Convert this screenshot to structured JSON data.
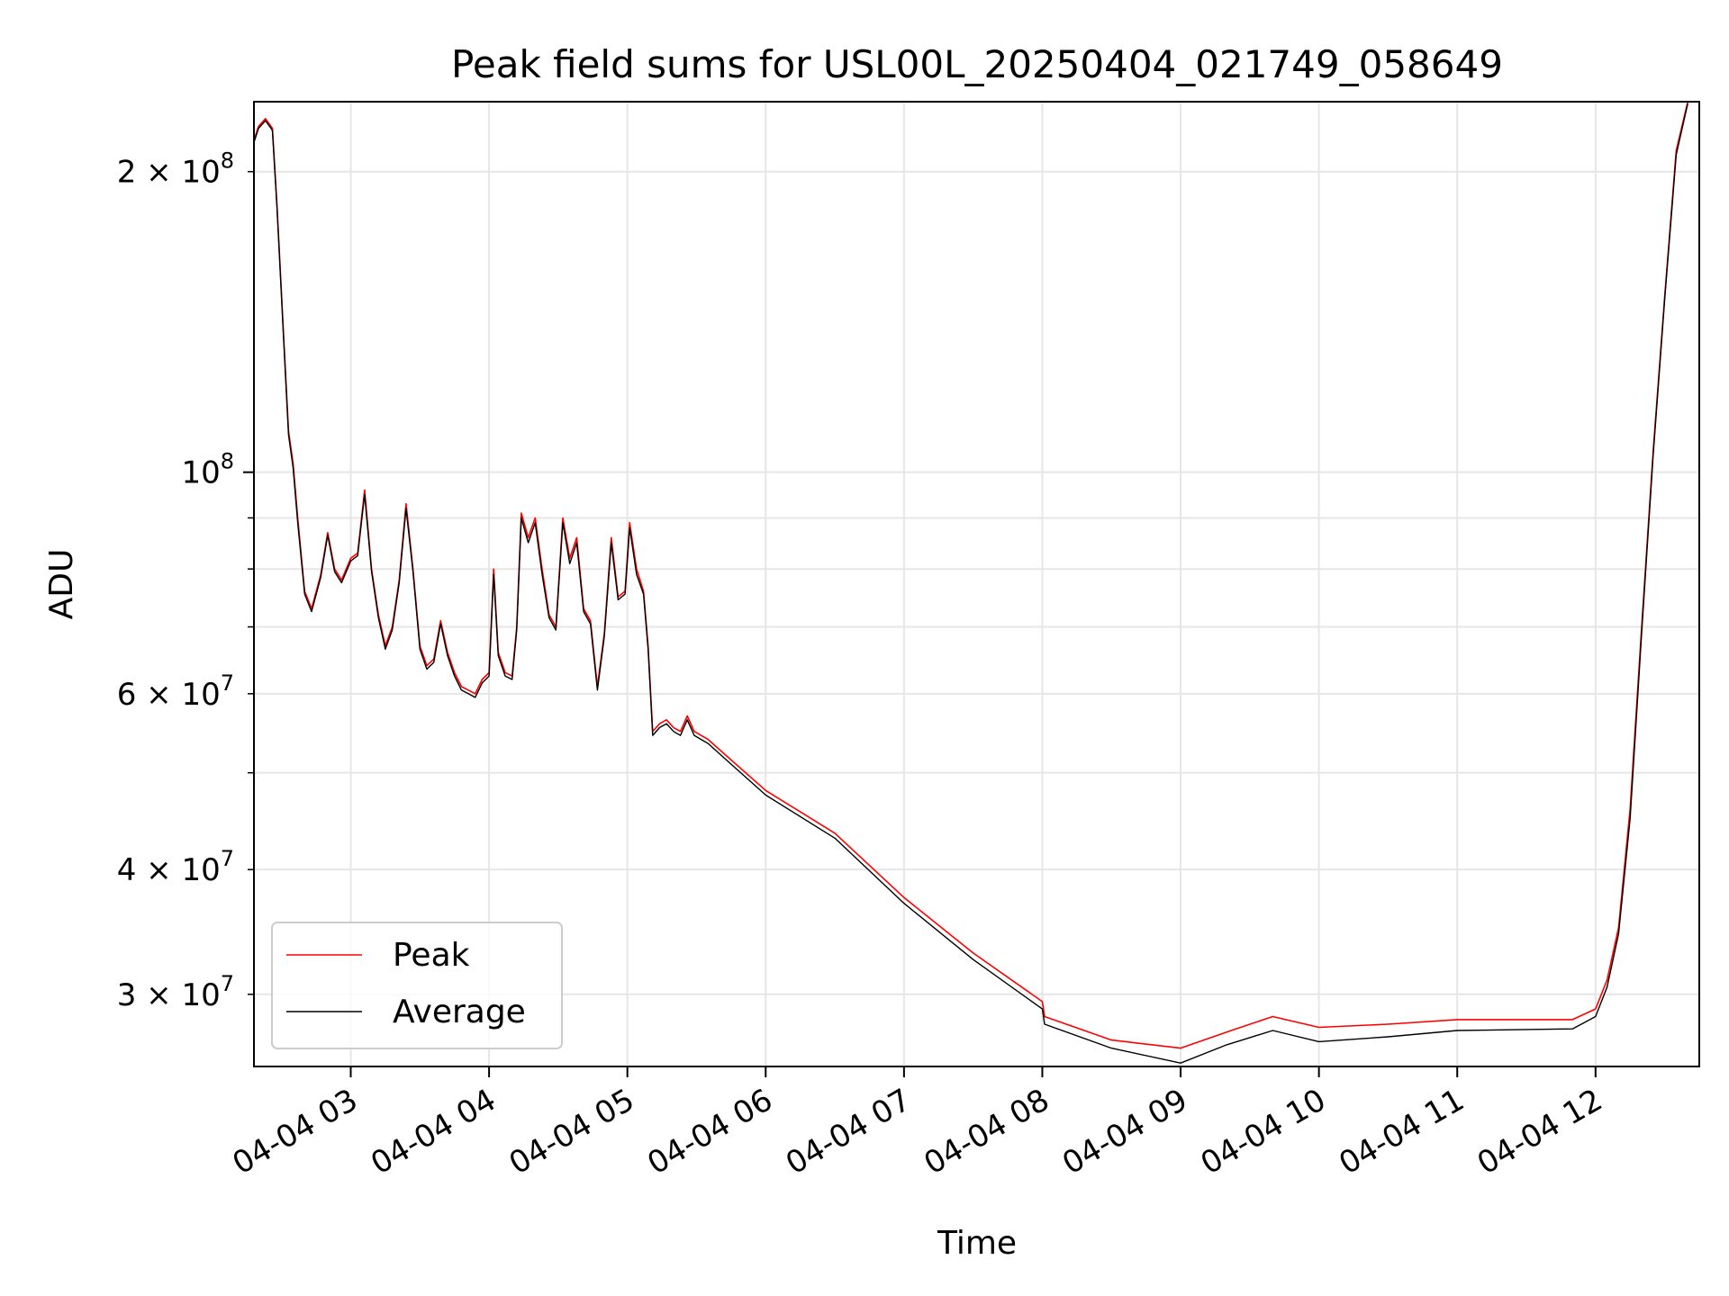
{
  "chart_data": {
    "type": "line",
    "title": "Peak field sums for USL00L_20250404_021749_058649",
    "xlabel": "Time",
    "ylabel": "ADU",
    "yscale": "log",
    "xlim": [
      "2025-04-04 02:18",
      "2025-04-04 12:45"
    ],
    "ylim": [
      25400000,
      235000000
    ],
    "grid": true,
    "legend": {
      "placement": "lower-left"
    },
    "x_ticks": [
      {
        "value": "2025-04-04 03:00",
        "label": "04-04 03"
      },
      {
        "value": "2025-04-04 04:00",
        "label": "04-04 04"
      },
      {
        "value": "2025-04-04 05:00",
        "label": "04-04 05"
      },
      {
        "value": "2025-04-04 06:00",
        "label": "04-04 06"
      },
      {
        "value": "2025-04-04 07:00",
        "label": "04-04 07"
      },
      {
        "value": "2025-04-04 08:00",
        "label": "04-04 08"
      },
      {
        "value": "2025-04-04 09:00",
        "label": "04-04 09"
      },
      {
        "value": "2025-04-04 10:00",
        "label": "04-04 10"
      },
      {
        "value": "2025-04-04 11:00",
        "label": "04-04 11"
      },
      {
        "value": "2025-04-04 12:00",
        "label": "04-04 12"
      }
    ],
    "y_major_ticks": [
      {
        "value": 100000000,
        "mantissa": "",
        "exponent": "8",
        "base": "10"
      }
    ],
    "y_minor_ticks": [
      {
        "value": 30000000,
        "mantissa": "3",
        "exponent": "7",
        "base": "10"
      },
      {
        "value": 40000000,
        "mantissa": "4",
        "exponent": "7",
        "base": "10"
      },
      {
        "value": 50000000
      },
      {
        "value": 60000000,
        "mantissa": "6",
        "exponent": "7",
        "base": "10"
      },
      {
        "value": 70000000
      },
      {
        "value": 80000000
      },
      {
        "value": 90000000
      },
      {
        "value": 200000000,
        "mantissa": "2",
        "exponent": "8",
        "base": "10"
      }
    ],
    "series": [
      {
        "name": "Peak",
        "color": "#ff0000",
        "points": [
          [
            "2025-04-04 02:18",
            215000000
          ],
          [
            "2025-04-04 02:20",
            222000000
          ],
          [
            "2025-04-04 02:23",
            226000000
          ],
          [
            "2025-04-04 02:26",
            221000000
          ],
          [
            "2025-04-04 02:28",
            185000000
          ],
          [
            "2025-04-04 02:31",
            135000000
          ],
          [
            "2025-04-04 02:33",
            110000000
          ],
          [
            "2025-04-04 02:35",
            102000000
          ],
          [
            "2025-04-04 02:37",
            90000000
          ],
          [
            "2025-04-04 02:40",
            76000000
          ],
          [
            "2025-04-04 02:43",
            73000000
          ],
          [
            "2025-04-04 02:47",
            79000000
          ],
          [
            "2025-04-04 02:50",
            87000000
          ],
          [
            "2025-04-04 02:53",
            80000000
          ],
          [
            "2025-04-04 02:56",
            78000000
          ],
          [
            "2025-04-04 03:00",
            82000000
          ],
          [
            "2025-04-04 03:03",
            83000000
          ],
          [
            "2025-04-04 03:06",
            96000000
          ],
          [
            "2025-04-04 03:09",
            80000000
          ],
          [
            "2025-04-04 03:12",
            72000000
          ],
          [
            "2025-04-04 03:15",
            67000000
          ],
          [
            "2025-04-04 03:18",
            70000000
          ],
          [
            "2025-04-04 03:21",
            78000000
          ],
          [
            "2025-04-04 03:24",
            93000000
          ],
          [
            "2025-04-04 03:27",
            80000000
          ],
          [
            "2025-04-04 03:30",
            67000000
          ],
          [
            "2025-04-04 03:33",
            64000000
          ],
          [
            "2025-04-04 03:36",
            65000000
          ],
          [
            "2025-04-04 03:39",
            71000000
          ],
          [
            "2025-04-04 03:42",
            66000000
          ],
          [
            "2025-04-04 03:45",
            63000000
          ],
          [
            "2025-04-04 03:48",
            61000000
          ],
          [
            "2025-04-04 03:51",
            60500000
          ],
          [
            "2025-04-04 03:54",
            60000000
          ],
          [
            "2025-04-04 03:57",
            62000000
          ],
          [
            "2025-04-04 04:00",
            63000000
          ],
          [
            "2025-04-04 04:02",
            80000000
          ],
          [
            "2025-04-04 04:04",
            66000000
          ],
          [
            "2025-04-04 04:07",
            63000000
          ],
          [
            "2025-04-04 04:10",
            62500000
          ],
          [
            "2025-04-04 04:12",
            70000000
          ],
          [
            "2025-04-04 04:14",
            91000000
          ],
          [
            "2025-04-04 04:17",
            86000000
          ],
          [
            "2025-04-04 04:20",
            90000000
          ],
          [
            "2025-04-04 04:23",
            80000000
          ],
          [
            "2025-04-04 04:26",
            72000000
          ],
          [
            "2025-04-04 04:29",
            70000000
          ],
          [
            "2025-04-04 04:32",
            90000000
          ],
          [
            "2025-04-04 04:35",
            82000000
          ],
          [
            "2025-04-04 04:38",
            86000000
          ],
          [
            "2025-04-04 04:41",
            73000000
          ],
          [
            "2025-04-04 04:44",
            71000000
          ],
          [
            "2025-04-04 04:47",
            61000000
          ],
          [
            "2025-04-04 04:50",
            69000000
          ],
          [
            "2025-04-04 04:53",
            86000000
          ],
          [
            "2025-04-04 04:56",
            75000000
          ],
          [
            "2025-04-04 04:59",
            76000000
          ],
          [
            "2025-04-04 05:01",
            89000000
          ],
          [
            "2025-04-04 05:04",
            80000000
          ],
          [
            "2025-04-04 05:07",
            76000000
          ],
          [
            "2025-04-04 05:09",
            67000000
          ],
          [
            "2025-04-04 05:11",
            55000000
          ],
          [
            "2025-04-04 05:14",
            56000000
          ],
          [
            "2025-04-04 05:17",
            56500000
          ],
          [
            "2025-04-04 05:20",
            55500000
          ],
          [
            "2025-04-04 05:23",
            55000000
          ],
          [
            "2025-04-04 05:26",
            57000000
          ],
          [
            "2025-04-04 05:29",
            55000000
          ],
          [
            "2025-04-04 05:35",
            54000000
          ],
          [
            "2025-04-04 05:45",
            51500000
          ],
          [
            "2025-04-04 06:00",
            48000000
          ],
          [
            "2025-04-04 06:30",
            43500000
          ],
          [
            "2025-04-04 07:00",
            37500000
          ],
          [
            "2025-04-04 07:30",
            33000000
          ],
          [
            "2025-04-04 08:00",
            29500000
          ],
          [
            "2025-04-04 08:01",
            28500000
          ],
          [
            "2025-04-04 08:30",
            27000000
          ],
          [
            "2025-04-04 09:00",
            26500000
          ],
          [
            "2025-04-04 09:20",
            27500000
          ],
          [
            "2025-04-04 09:40",
            28500000
          ],
          [
            "2025-04-04 10:00",
            27800000
          ],
          [
            "2025-04-04 10:30",
            28000000
          ],
          [
            "2025-04-04 11:00",
            28300000
          ],
          [
            "2025-04-04 11:50",
            28300000
          ],
          [
            "2025-04-04 12:00",
            29000000
          ],
          [
            "2025-04-04 12:05",
            31000000
          ],
          [
            "2025-04-04 12:10",
            35000000
          ],
          [
            "2025-04-04 12:15",
            46000000
          ],
          [
            "2025-04-04 12:20",
            70000000
          ],
          [
            "2025-04-04 12:25",
            105000000
          ],
          [
            "2025-04-04 12:30",
            150000000
          ],
          [
            "2025-04-04 12:35",
            210000000
          ],
          [
            "2025-04-04 12:40",
            235000000
          ]
        ]
      },
      {
        "name": "Average",
        "color": "#000000",
        "points": [
          [
            "2025-04-04 02:18",
            214000000
          ],
          [
            "2025-04-04 02:20",
            221000000
          ],
          [
            "2025-04-04 02:23",
            225000000
          ],
          [
            "2025-04-04 02:26",
            220000000
          ],
          [
            "2025-04-04 02:28",
            184000000
          ],
          [
            "2025-04-04 02:31",
            134000000
          ],
          [
            "2025-04-04 02:33",
            109000000
          ],
          [
            "2025-04-04 02:35",
            101000000
          ],
          [
            "2025-04-04 02:37",
            89000000
          ],
          [
            "2025-04-04 02:40",
            75500000
          ],
          [
            "2025-04-04 02:43",
            72500000
          ],
          [
            "2025-04-04 02:47",
            78500000
          ],
          [
            "2025-04-04 02:50",
            86500000
          ],
          [
            "2025-04-04 02:53",
            79500000
          ],
          [
            "2025-04-04 02:56",
            77500000
          ],
          [
            "2025-04-04 03:00",
            81500000
          ],
          [
            "2025-04-04 03:03",
            82500000
          ],
          [
            "2025-04-04 03:06",
            95000000
          ],
          [
            "2025-04-04 03:09",
            79500000
          ],
          [
            "2025-04-04 03:12",
            71500000
          ],
          [
            "2025-04-04 03:15",
            66500000
          ],
          [
            "2025-04-04 03:18",
            69500000
          ],
          [
            "2025-04-04 03:21",
            77500000
          ],
          [
            "2025-04-04 03:24",
            92000000
          ],
          [
            "2025-04-04 03:27",
            79500000
          ],
          [
            "2025-04-04 03:30",
            66500000
          ],
          [
            "2025-04-04 03:33",
            63500000
          ],
          [
            "2025-04-04 03:36",
            64500000
          ],
          [
            "2025-04-04 03:39",
            70500000
          ],
          [
            "2025-04-04 03:42",
            65500000
          ],
          [
            "2025-04-04 03:45",
            62500000
          ],
          [
            "2025-04-04 03:48",
            60500000
          ],
          [
            "2025-04-04 03:51",
            60000000
          ],
          [
            "2025-04-04 03:54",
            59500000
          ],
          [
            "2025-04-04 03:57",
            61500000
          ],
          [
            "2025-04-04 04:00",
            62500000
          ],
          [
            "2025-04-04 04:02",
            79000000
          ],
          [
            "2025-04-04 04:04",
            65500000
          ],
          [
            "2025-04-04 04:07",
            62500000
          ],
          [
            "2025-04-04 04:10",
            62000000
          ],
          [
            "2025-04-04 04:12",
            69500000
          ],
          [
            "2025-04-04 04:14",
            90000000
          ],
          [
            "2025-04-04 04:17",
            85000000
          ],
          [
            "2025-04-04 04:20",
            89000000
          ],
          [
            "2025-04-04 04:23",
            79000000
          ],
          [
            "2025-04-04 04:26",
            71500000
          ],
          [
            "2025-04-04 04:29",
            69500000
          ],
          [
            "2025-04-04 04:32",
            89000000
          ],
          [
            "2025-04-04 04:35",
            81000000
          ],
          [
            "2025-04-04 04:38",
            85000000
          ],
          [
            "2025-04-04 04:41",
            72500000
          ],
          [
            "2025-04-04 04:44",
            70500000
          ],
          [
            "2025-04-04 04:47",
            60500000
          ],
          [
            "2025-04-04 04:50",
            68500000
          ],
          [
            "2025-04-04 04:53",
            85000000
          ],
          [
            "2025-04-04 04:56",
            74500000
          ],
          [
            "2025-04-04 04:59",
            75500000
          ],
          [
            "2025-04-04 05:01",
            88000000
          ],
          [
            "2025-04-04 05:04",
            79000000
          ],
          [
            "2025-04-04 05:07",
            75500000
          ],
          [
            "2025-04-04 05:09",
            66500000
          ],
          [
            "2025-04-04 05:11",
            54500000
          ],
          [
            "2025-04-04 05:14",
            55500000
          ],
          [
            "2025-04-04 05:17",
            56000000
          ],
          [
            "2025-04-04 05:20",
            55000000
          ],
          [
            "2025-04-04 05:23",
            54500000
          ],
          [
            "2025-04-04 05:26",
            56500000
          ],
          [
            "2025-04-04 05:29",
            54500000
          ],
          [
            "2025-04-04 05:35",
            53500000
          ],
          [
            "2025-04-04 05:45",
            51000000
          ],
          [
            "2025-04-04 06:00",
            47500000
          ],
          [
            "2025-04-04 06:30",
            43000000
          ],
          [
            "2025-04-04 07:00",
            37000000
          ],
          [
            "2025-04-04 07:30",
            32500000
          ],
          [
            "2025-04-04 08:00",
            29000000
          ],
          [
            "2025-04-04 08:01",
            28000000
          ],
          [
            "2025-04-04 08:30",
            26500000
          ],
          [
            "2025-04-04 09:00",
            25600000
          ],
          [
            "2025-04-04 09:20",
            26700000
          ],
          [
            "2025-04-04 09:40",
            27600000
          ],
          [
            "2025-04-04 10:00",
            26900000
          ],
          [
            "2025-04-04 10:30",
            27200000
          ],
          [
            "2025-04-04 11:00",
            27600000
          ],
          [
            "2025-04-04 11:50",
            27700000
          ],
          [
            "2025-04-04 12:00",
            28500000
          ],
          [
            "2025-04-04 12:05",
            30500000
          ],
          [
            "2025-04-04 12:10",
            34500000
          ],
          [
            "2025-04-04 12:15",
            45000000
          ],
          [
            "2025-04-04 12:20",
            69000000
          ],
          [
            "2025-04-04 12:25",
            104000000
          ],
          [
            "2025-04-04 12:30",
            149000000
          ],
          [
            "2025-04-04 12:35",
            208000000
          ],
          [
            "2025-04-04 12:40",
            234000000
          ]
        ]
      }
    ]
  }
}
